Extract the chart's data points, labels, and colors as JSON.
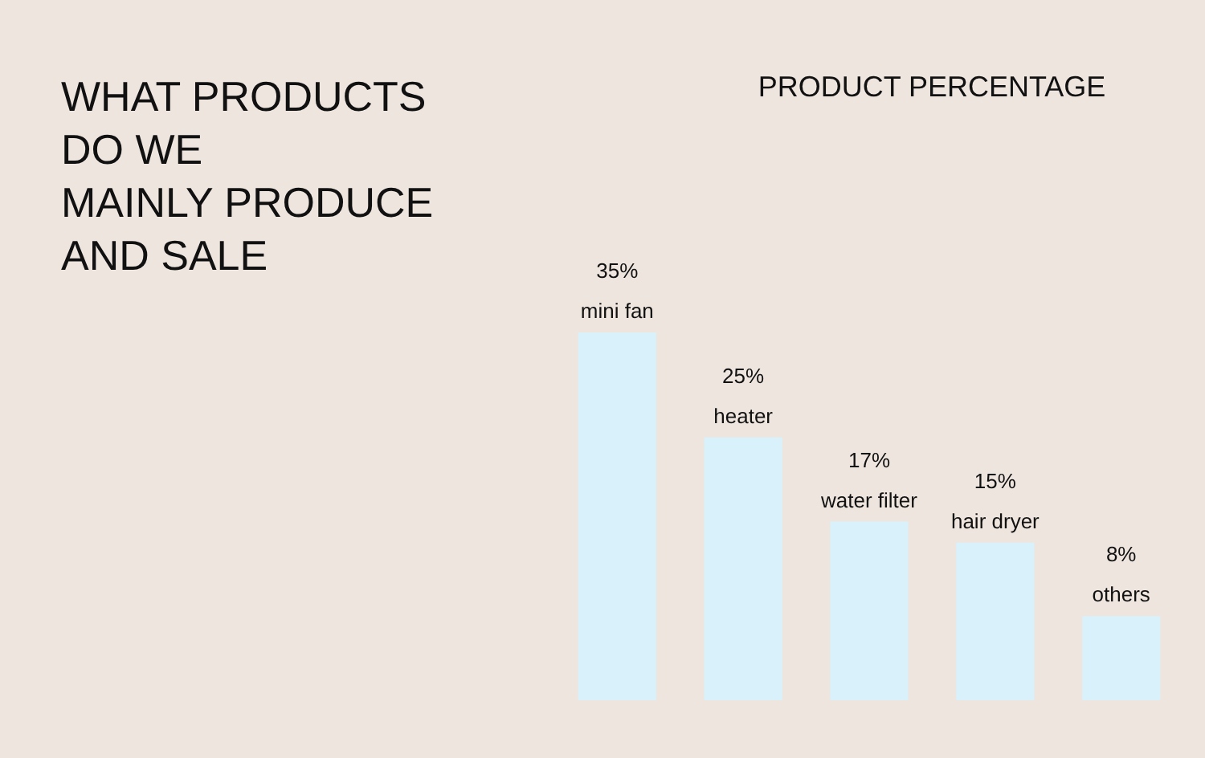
{
  "chart_data": {
    "type": "bar",
    "title": "WHAT PRODUCTS\nDO WE\nMAINLY PRODUCE\nAND SALE",
    "subtitle": "PRODUCT PERCENTAGE",
    "categories": [
      "mini fan",
      "heater",
      "water filter",
      "hair dryer",
      "others"
    ],
    "values": [
      35,
      25,
      17,
      15,
      8
    ],
    "value_labels": [
      "35%",
      "25%",
      "17%",
      "15%",
      "8%"
    ],
    "color": "#d8f1fb"
  }
}
